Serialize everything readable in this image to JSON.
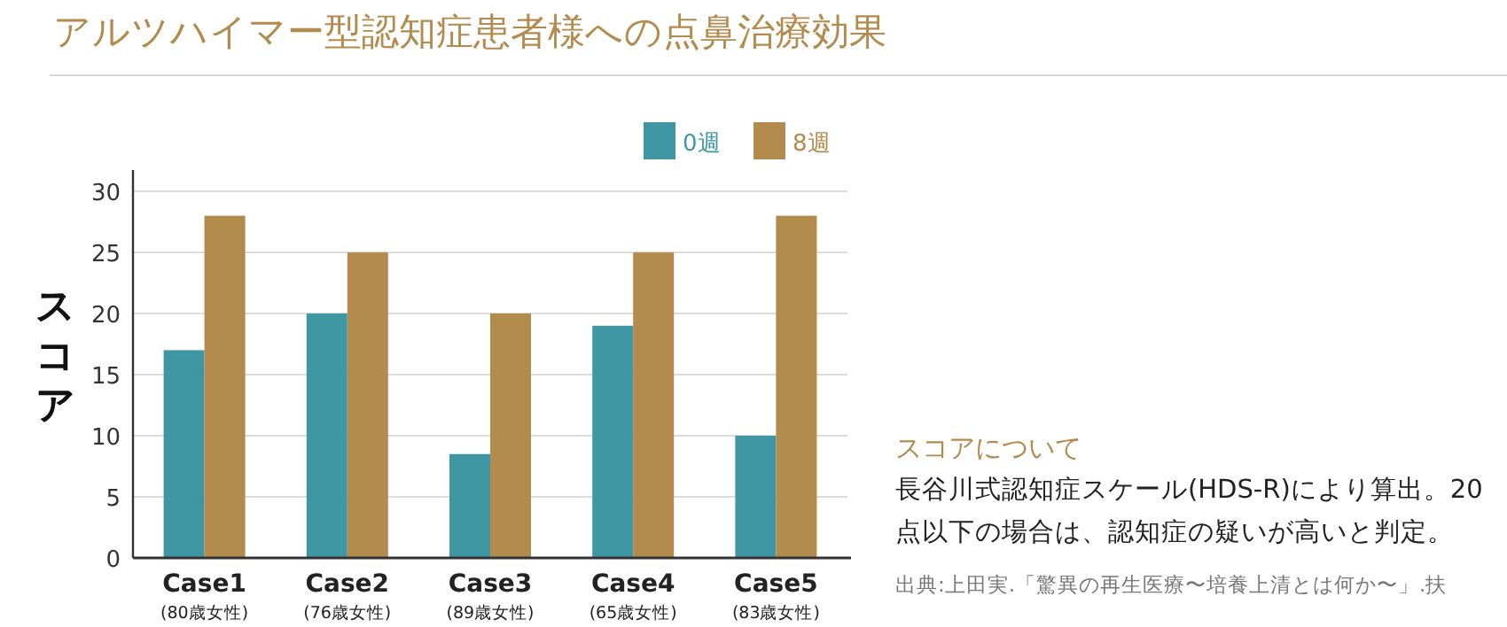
{
  "chart_data": {
    "type": "bar",
    "title": "アルツハイマー型認知症患者様への点鼻治療効果",
    "ylabel": "スコア",
    "categories": [
      "Case1\n(80歳女性)",
      "Case2\n(76歳女性)",
      "Case3\n(89歳女性)",
      "Case4\n(65歳女性)",
      "Case5\n(83歳女性)"
    ],
    "series": [
      {
        "name": "0週",
        "color": "#3e97a3",
        "values": [
          17,
          20,
          8.5,
          19,
          10
        ]
      },
      {
        "name": "8週",
        "color": "#b38b4d",
        "values": [
          28,
          25,
          20,
          25,
          28
        ]
      }
    ],
    "ylim": [
      0,
      30
    ],
    "yticks": [
      0,
      5,
      10,
      15,
      20,
      25,
      30
    ],
    "grid": "y",
    "legend": "top right",
    "annotations": [
      "スコアについて",
      "長谷川式認知症スケール(HDS-R)により算出。20点以下の場合は、認知症の疑いが高いと判定。",
      "出典:上田実.「驚異の再生医療〜培養上清とは何か〜」.扶"
    ]
  }
}
